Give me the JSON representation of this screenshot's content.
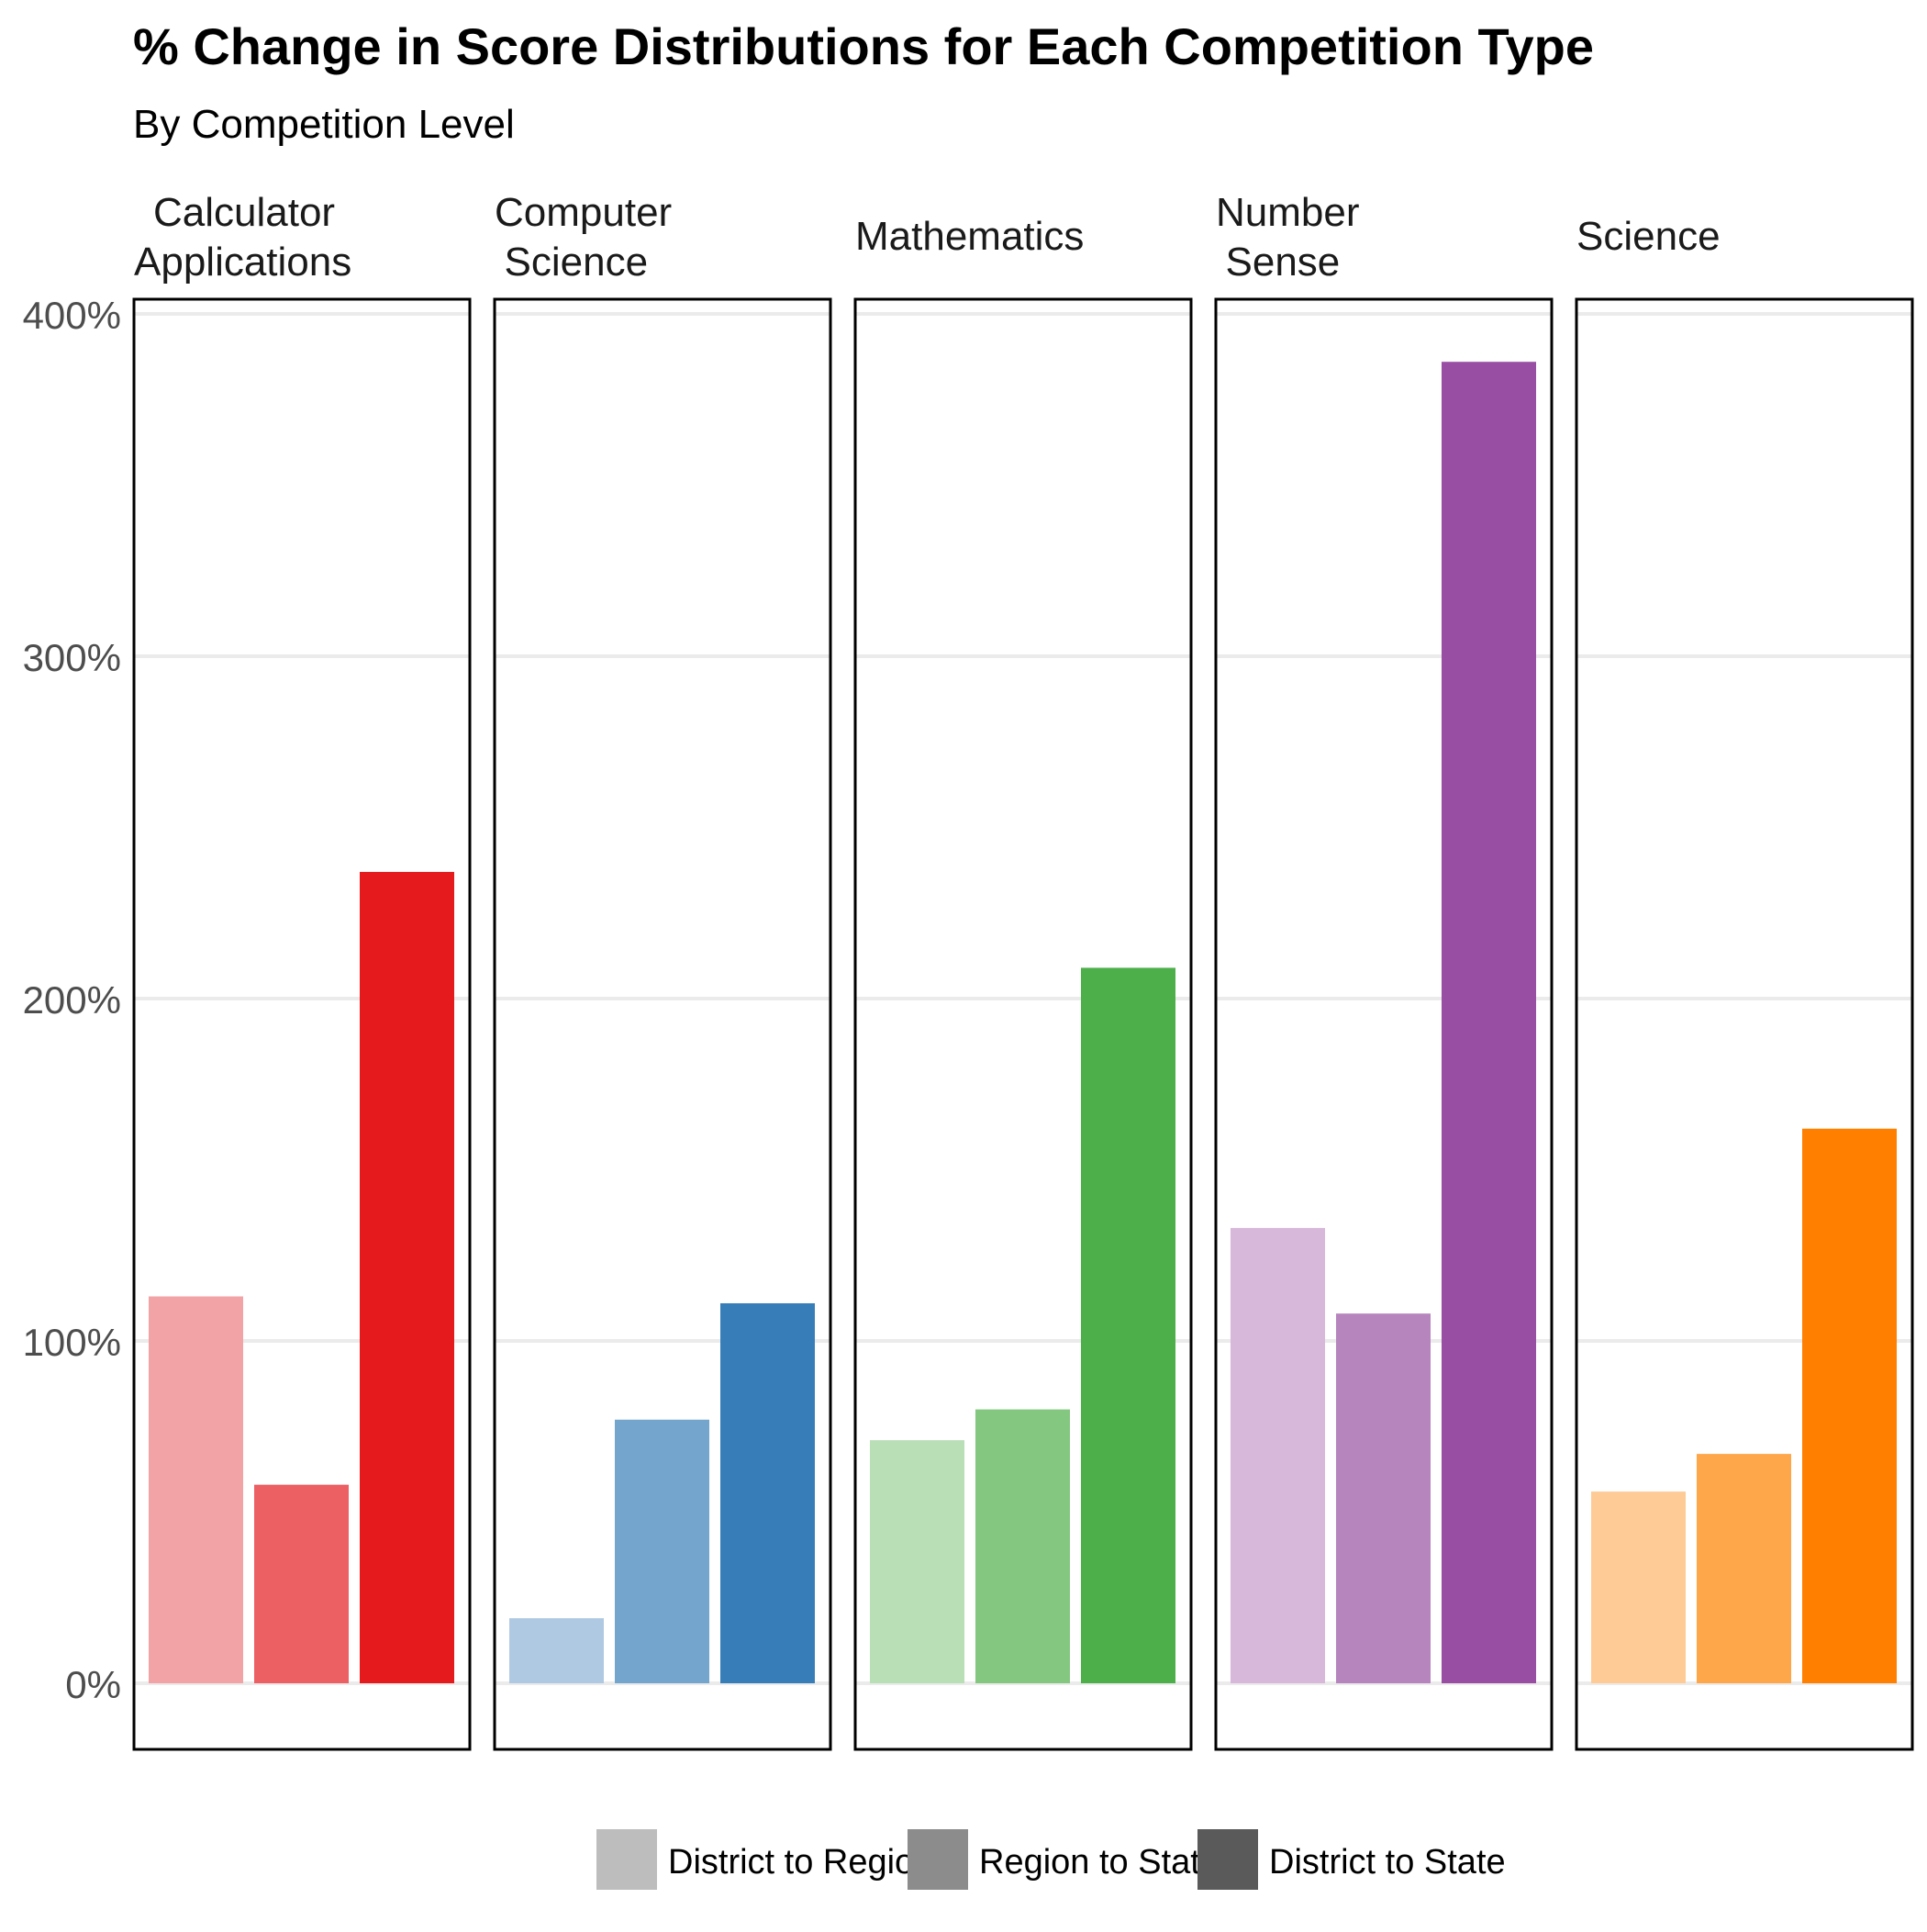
{
  "chart_data": {
    "type": "bar",
    "title": "% Change in Score Distributions for Each Competition Type",
    "subtitle": "By Competition Level",
    "xlabel": "",
    "ylabel": "",
    "ylim": [
      -20,
      405
    ],
    "yticks": [
      0,
      100,
      200,
      300,
      400
    ],
    "ytick_labels": [
      "0%",
      "100%",
      "200%",
      "300%",
      "400%"
    ],
    "grid": true,
    "legend_position": "bottom",
    "legend": [
      "District to Region",
      "Region to State",
      "District to State"
    ],
    "legend_colors": [
      "#bdbdbd",
      "#8c8c8c",
      "#5a5a5a"
    ],
    "panels": [
      {
        "title_lines": [
          "Calculator",
          "Applications"
        ],
        "values": [
          113,
          58,
          237
        ],
        "colors": [
          "#f2a3a5",
          "#ec5f63",
          "#e41a1c"
        ]
      },
      {
        "title_lines": [
          "Computer",
          "Science"
        ],
        "values": [
          19,
          77,
          111
        ],
        "colors": [
          "#afc9e2",
          "#74a5cd",
          "#377eb8"
        ]
      },
      {
        "title_lines": [
          "Mathematics"
        ],
        "values": [
          71,
          80,
          209
        ],
        "colors": [
          "#b9dfb7",
          "#83c780",
          "#4daf4a"
        ]
      },
      {
        "title_lines": [
          "Number",
          "Sense"
        ],
        "values": [
          133,
          108,
          386
        ],
        "colors": [
          "#d7b8da",
          "#b785bd",
          "#984ea3"
        ]
      },
      {
        "title_lines": [
          "Science"
        ],
        "values": [
          56,
          67,
          162
        ],
        "colors": [
          "#fecb97",
          "#fea64a",
          "#ff7f00"
        ]
      }
    ]
  }
}
